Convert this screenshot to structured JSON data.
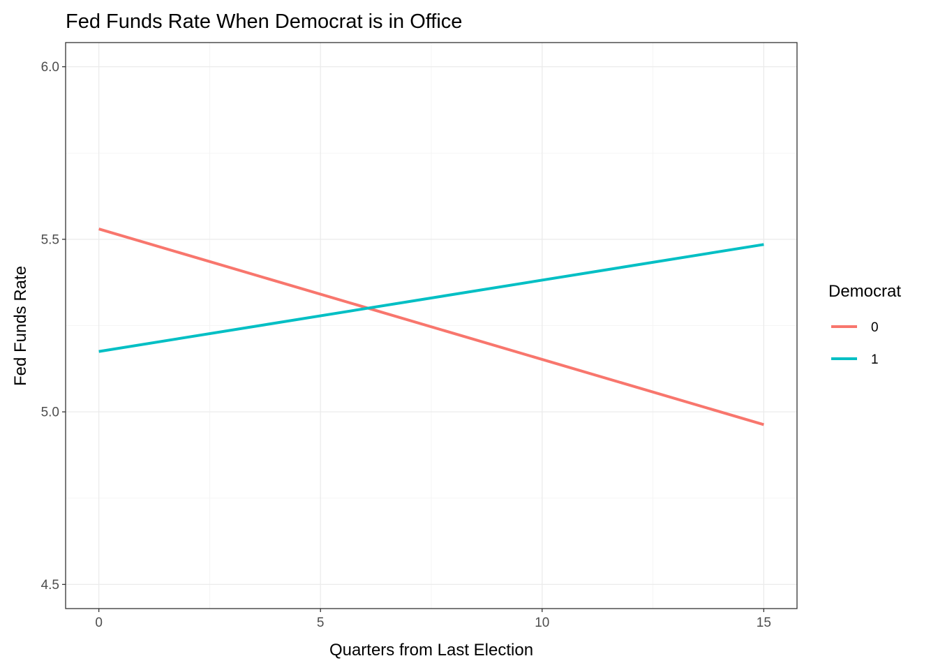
{
  "chart_data": {
    "type": "line",
    "title": "Fed Funds Rate When Democrat is in Office",
    "xlabel": "Quarters from Last Election",
    "ylabel": "Fed Funds Rate",
    "xlim": [
      -0.75,
      15.75
    ],
    "ylim": [
      4.43,
      6.07
    ],
    "x_ticks": [
      0,
      5,
      10,
      15
    ],
    "x_tick_labels": [
      "0",
      "5",
      "10",
      "15"
    ],
    "y_ticks": [
      4.5,
      5.0,
      5.5,
      6.0
    ],
    "y_tick_labels": [
      "4.5",
      "5.0",
      "5.5",
      "6.0"
    ],
    "grid": true,
    "legend": {
      "title": "Democrat",
      "position": "right"
    },
    "series": [
      {
        "name": "0",
        "color": "#F8766D",
        "x": [
          0,
          15
        ],
        "y": [
          5.53,
          4.963
        ]
      },
      {
        "name": "1",
        "color": "#00BFC4",
        "x": [
          0,
          15
        ],
        "y": [
          5.175,
          5.485
        ]
      }
    ]
  }
}
